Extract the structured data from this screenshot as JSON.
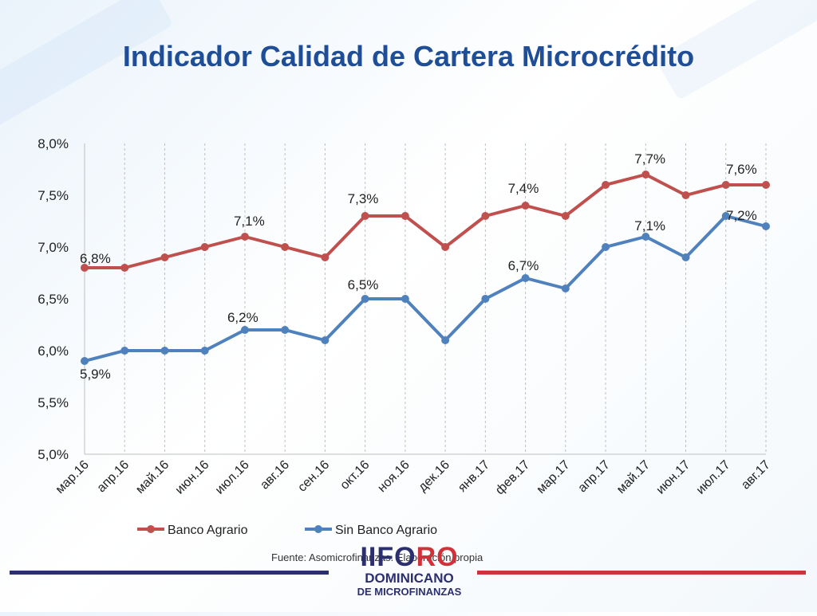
{
  "slide": {
    "title": "Indicador Calidad de Cartera Microcrédito",
    "source": "Fuente:  Asomicrofinanzas. Elaboración propia"
  },
  "logo": {
    "roman": "II",
    "fo": "FO",
    "ro": "RO",
    "line1": "DOMINICANO",
    "line2": "DE MICROFINANZAS"
  },
  "colors": {
    "title": "#1f4e96",
    "series1": "#c0504d",
    "series2": "#4f81bd",
    "grid": "#bfbfbf",
    "footer_left": "#2c2f6e",
    "footer_right": "#d0323a"
  },
  "chart_data": {
    "type": "line",
    "title": "",
    "xlabel": "",
    "ylabel": "",
    "categories": [
      "мар.16",
      "апр.16",
      "май.16",
      "июн.16",
      "июл.16",
      "авг.16",
      "сен.16",
      "окт.16",
      "ноя.16",
      "дек.16",
      "янв.17",
      "фев.17",
      "мар.17",
      "апр.17",
      "май.17",
      "июн.17",
      "июл.17",
      "авг.17"
    ],
    "ylim": [
      0.05,
      0.08
    ],
    "yticks": [
      "5,0%",
      "5,5%",
      "6,0%",
      "6,5%",
      "7,0%",
      "7,5%",
      "8,0%"
    ],
    "ytick_values": [
      0.05,
      0.055,
      0.06,
      0.065,
      0.07,
      0.075,
      0.08
    ],
    "grid": "vertical",
    "legend_position": "bottom",
    "series": [
      {
        "name": "Banco Agrario",
        "values": [
          0.068,
          0.068,
          0.069,
          0.07,
          0.071,
          0.07,
          0.069,
          0.073,
          0.073,
          0.07,
          0.073,
          0.074,
          0.073,
          0.076,
          0.077,
          0.075,
          0.076,
          0.076
        ],
        "labels": [
          {
            "i": 0,
            "text": "6,8%"
          },
          {
            "i": 4,
            "text": "7,1%"
          },
          {
            "i": 7,
            "text": "7,3%"
          },
          {
            "i": 11,
            "text": "7,4%"
          },
          {
            "i": 14,
            "text": "7,7%"
          },
          {
            "i": 17,
            "text": "7,6%"
          }
        ]
      },
      {
        "name": "Sin Banco Agrario",
        "values": [
          0.059,
          0.06,
          0.06,
          0.06,
          0.062,
          0.062,
          0.061,
          0.065,
          0.065,
          0.061,
          0.065,
          0.067,
          0.066,
          0.07,
          0.071,
          0.069,
          0.073,
          0.072
        ],
        "labels": [
          {
            "i": 0,
            "text": "5,9%"
          },
          {
            "i": 4,
            "text": "6,2%"
          },
          {
            "i": 7,
            "text": "6,5%"
          },
          {
            "i": 11,
            "text": "6,7%"
          },
          {
            "i": 14,
            "text": "7,1%"
          },
          {
            "i": 17,
            "text": "7,2%"
          }
        ]
      }
    ]
  }
}
